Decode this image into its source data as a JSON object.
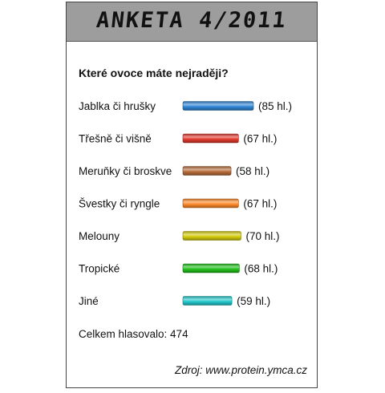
{
  "header": {
    "title": "ANKETA 4/2011"
  },
  "question": "Které ovoce máte nejraději?",
  "chart_data": {
    "type": "bar",
    "orientation": "horizontal",
    "title": "Které ovoce máte nejraději?",
    "categories": [
      "Jablka či hrušky",
      "Třešně či višně",
      "Meruňky či broskve",
      "Švestky či ryngle",
      "Melouny",
      "Tropické",
      "Jiné"
    ],
    "values": [
      85,
      67,
      58,
      67,
      70,
      68,
      59
    ],
    "value_labels": [
      "(85 hl.)",
      "(67 hl.)",
      "(58 hl.)",
      "(67 hl.)",
      "(70 hl.)",
      "(68 hl.)",
      "(59 hl.)"
    ],
    "colors": [
      "#2f86d6",
      "#e23a2e",
      "#b86d3a",
      "#ff8a2a",
      "#d4cc0c",
      "#22c21b",
      "#22c8cc"
    ],
    "unit": "hl."
  },
  "footer": {
    "total": "Celkem hlasovalo: 474",
    "source": "Zdroj: www.protein.ymca.cz"
  }
}
